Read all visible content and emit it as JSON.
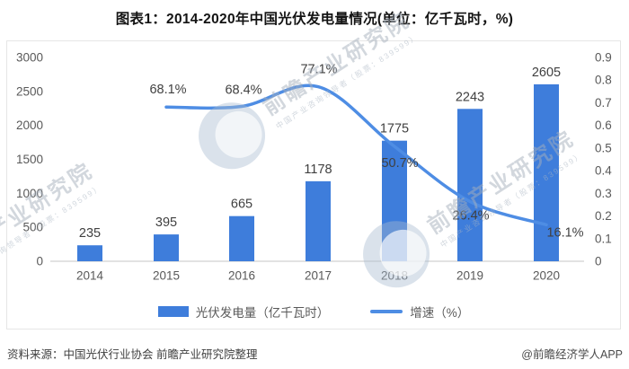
{
  "title": "图表1：2014-2020年中国光伏发电量情况(单位：亿千瓦时，%)",
  "legend": {
    "items": [
      {
        "label": "光伏发电量（亿千瓦时）",
        "marker": "bar"
      },
      {
        "label": "增速（%）",
        "marker": "line"
      }
    ]
  },
  "footer": {
    "source": "资料来源：中国光伏行业协会 前瞻产业研究院整理",
    "credit": "@前瞻经济学人APP"
  },
  "watermark": {
    "brand": "前瞻产业研究院",
    "tagline": "中国产业咨询领导者（股票：839599）"
  },
  "colors": {
    "bar": "#3E7DDB",
    "line": "#4E8DE4",
    "axis_text": "#595959",
    "label_text": "#404040",
    "axis_line": "#d9d9d9"
  },
  "chart_data": {
    "type": "bar",
    "subtype": "bar+line combo",
    "title": "图表1：2014-2020年中国光伏发电量情况(单位：亿千瓦时，%)",
    "categories": [
      "2014",
      "2015",
      "2016",
      "2017",
      "2018",
      "2019",
      "2020"
    ],
    "series": [
      {
        "name": "光伏发电量（亿千瓦时）",
        "type": "bar",
        "axis": "left",
        "values": [
          235,
          395,
          665,
          1178,
          1775,
          2243,
          2605
        ],
        "labels": [
          "235",
          "395",
          "665",
          "1178",
          "1775",
          "2243",
          "2605"
        ]
      },
      {
        "name": "增速（%）",
        "type": "line",
        "axis": "right",
        "values": [
          null,
          0.681,
          0.684,
          0.771,
          0.507,
          0.264,
          0.161
        ],
        "labels": [
          null,
          "68.1%",
          "68.4%",
          "77.1%",
          "50.7%",
          "26.4%",
          "16.1%"
        ]
      }
    ],
    "left_axis": {
      "min": 0,
      "max": 3000,
      "step": 500,
      "ticks": [
        "0",
        "500",
        "1000",
        "1500",
        "2000",
        "2500",
        "3000"
      ]
    },
    "right_axis": {
      "min": 0,
      "max": 0.9,
      "step": 0.1,
      "ticks": [
        "0",
        "0.1",
        "0.2",
        "0.3",
        "0.4",
        "0.5",
        "0.6",
        "0.7",
        "0.8",
        "0.9"
      ]
    },
    "grid": false,
    "legend_position": "bottom"
  }
}
